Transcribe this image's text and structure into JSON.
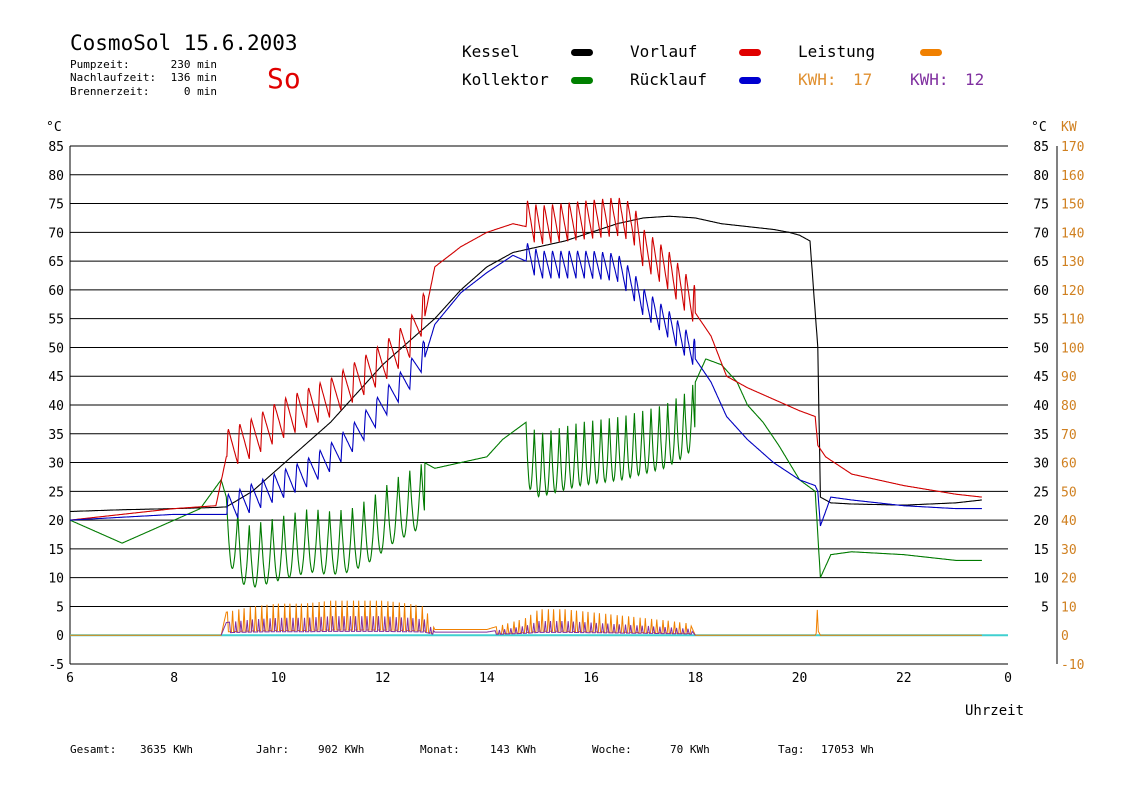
{
  "header": {
    "title": "CosmoSol 15.6.2003",
    "day": "So",
    "info": [
      {
        "label": "Pumpzeit:",
        "value": "230 min"
      },
      {
        "label": "Nachlaufzeit:",
        "value": "136 min"
      },
      {
        "label": "Brennerzeit:",
        "value": "0 min"
      }
    ]
  },
  "legend": [
    {
      "name": "Kessel",
      "color": "#000000"
    },
    {
      "name": "Kollektor",
      "color": "#008000"
    },
    {
      "name": "Vorlauf",
      "color": "#e00000"
    },
    {
      "name": "Rücklauf",
      "color": "#0000d0"
    },
    {
      "name": "Leistung",
      "color": "#f08000"
    }
  ],
  "kwh": [
    {
      "label": "KWH:",
      "value": "17",
      "color": "#e09030"
    },
    {
      "label": "KWH:",
      "value": "12",
      "color": "#8030a0"
    }
  ],
  "axes": {
    "y_left_unit": "°C",
    "y_right_unit": "°C",
    "y_power_unit": "KW",
    "x_label": "Uhrzeit"
  },
  "footer": [
    {
      "label": "Gesamt:",
      "value": "3635 KWh"
    },
    {
      "label": "Jahr:",
      "value": "902 KWh"
    },
    {
      "label": "Monat:",
      "value": "143 KWh"
    },
    {
      "label": "Woche:",
      "value": "70 KWh"
    },
    {
      "label": "Tag:",
      "value": "17053 Wh"
    }
  ],
  "colors": {
    "kessel": "#000000",
    "kollektor": "#007a00",
    "vorlauf": "#d00000",
    "ruecklauf": "#0000c0",
    "leistung": "#f08000",
    "baseline": "#40d0d0",
    "axis_orange": "#d08020",
    "purple": "#8030a0"
  },
  "chart_data": {
    "type": "line",
    "xlim": [
      6,
      24
    ],
    "ylim": [
      -5,
      85
    ],
    "y_power_lim": [
      -10,
      170
    ],
    "x_ticks": [
      "6",
      "8",
      "10",
      "12",
      "14",
      "16",
      "18",
      "20",
      "22",
      "0"
    ],
    "y_ticks_left": [
      "85",
      "80",
      "75",
      "70",
      "65",
      "60",
      "55",
      "50",
      "45",
      "40",
      "35",
      "30",
      "25",
      "20",
      "15",
      "10",
      "5",
      "0",
      "-5"
    ],
    "y_ticks_right": [
      "85",
      "80",
      "75",
      "70",
      "65",
      "60",
      "55",
      "50",
      "45",
      "40",
      "35",
      "30",
      "25",
      "20",
      "15",
      "10",
      "5",
      "",
      ""
    ],
    "y_ticks_power": [
      "170",
      "160",
      "150",
      "140",
      "130",
      "120",
      "110",
      "100",
      "90",
      "80",
      "70",
      "60",
      "50",
      "40",
      "30",
      "20",
      "10",
      "0",
      "-10"
    ],
    "series": [
      {
        "name": "Kessel",
        "key": "kessel",
        "x": [
          6.0,
          7.0,
          8.0,
          8.8,
          9.0,
          9.5,
          10.0,
          10.5,
          11.0,
          11.5,
          12.0,
          12.5,
          13.0,
          13.5,
          14.0,
          14.5,
          15.0,
          15.5,
          16.0,
          16.5,
          17.0,
          17.5,
          18.0,
          18.5,
          19.0,
          19.5,
          19.8,
          20.0,
          20.2,
          20.35,
          20.4,
          20.6,
          21.0,
          22.0,
          23.0,
          23.5
        ],
        "y": [
          21.5,
          21.8,
          22.0,
          22.2,
          22.3,
          25.0,
          29.0,
          33.0,
          37.0,
          42.0,
          47.0,
          51.0,
          55.0,
          60.0,
          64.0,
          66.5,
          67.5,
          68.5,
          70.0,
          71.5,
          72.5,
          72.8,
          72.5,
          71.5,
          71.0,
          70.5,
          70.0,
          69.5,
          68.5,
          50.0,
          24.0,
          23.0,
          22.8,
          22.6,
          23.0,
          23.5
        ]
      },
      {
        "name": "Kollektor",
        "key": "kollektor",
        "x": [
          6.0,
          6.5,
          7.0,
          7.5,
          8.0,
          8.5,
          8.9,
          9.0,
          9.4,
          9.8,
          10.2,
          10.6,
          11.0,
          11.4,
          11.8,
          12.2,
          12.6,
          12.8,
          13.0,
          13.5,
          14.0,
          14.3,
          14.6,
          14.75,
          15.0,
          15.4,
          15.8,
          16.2,
          16.6,
          17.0,
          17.4,
          17.8,
          18.0,
          18.2,
          18.5,
          18.8,
          19.0,
          19.3,
          19.6,
          20.0,
          20.3,
          20.4,
          20.6,
          21.0,
          22.0,
          23.0,
          23.5
        ],
        "y": [
          20.0,
          18.0,
          16.0,
          18.0,
          20.0,
          22.0,
          27.0,
          24.0,
          19.0,
          20.0,
          21.0,
          22.0,
          21.5,
          22.0,
          24.0,
          27.0,
          29.0,
          30.0,
          29.0,
          30.0,
          31.0,
          34.0,
          36.0,
          37.0,
          35.0,
          36.0,
          37.0,
          37.5,
          38.0,
          39.0,
          40.0,
          42.0,
          44.0,
          48.0,
          47.0,
          44.0,
          40.0,
          37.0,
          33.0,
          27.0,
          25.0,
          10.0,
          14.0,
          14.5,
          14.0,
          13.0,
          13.0
        ],
        "osc_amp": 11
      },
      {
        "name": "Vorlauf",
        "key": "vorlauf",
        "x": [
          6.0,
          7.0,
          8.0,
          8.8,
          9.0,
          9.5,
          10.0,
          10.5,
          11.0,
          11.5,
          12.0,
          12.5,
          12.8,
          13.0,
          13.5,
          14.0,
          14.5,
          14.75,
          15.0,
          15.5,
          16.0,
          16.5,
          16.8,
          17.0,
          17.5,
          18.0,
          18.3,
          18.6,
          19.0,
          19.5,
          20.0,
          20.3,
          20.35,
          20.5,
          21.0,
          22.0,
          23.0,
          23.5
        ],
        "y": [
          20.0,
          21.0,
          22.0,
          22.5,
          31.0,
          33.0,
          36.0,
          38.0,
          40.0,
          43.0,
          46.0,
          50.0,
          55.0,
          64.0,
          67.5,
          70.0,
          71.5,
          71.0,
          70.0,
          70.5,
          71.0,
          71.5,
          70.5,
          66.0,
          62.0,
          56.0,
          52.0,
          45.0,
          43.0,
          41.0,
          39.0,
          38.0,
          33.0,
          31.0,
          28.0,
          26.0,
          24.5,
          24.0
        ],
        "osc_amp": 7
      },
      {
        "name": "Rücklauf",
        "key": "ruecklauf",
        "x": [
          6.0,
          7.0,
          8.0,
          8.8,
          9.0,
          9.5,
          10.0,
          10.5,
          11.0,
          11.5,
          12.0,
          12.5,
          12.8,
          13.0,
          13.5,
          14.0,
          14.5,
          14.75,
          15.0,
          15.5,
          16.0,
          16.5,
          16.8,
          17.0,
          17.5,
          18.0,
          18.3,
          18.6,
          19.0,
          19.5,
          20.0,
          20.3,
          20.35,
          20.4,
          20.6,
          21.0,
          22.0,
          23.0,
          23.5
        ],
        "y": [
          20.0,
          20.5,
          21.0,
          21.0,
          21.0,
          23.0,
          25.0,
          27.0,
          30.0,
          34.0,
          39.0,
          44.0,
          48.0,
          54.0,
          59.5,
          63.0,
          66.0,
          65.0,
          63.5,
          63.5,
          63.5,
          63.0,
          60.0,
          57.0,
          53.0,
          48.0,
          44.0,
          38.0,
          34.0,
          30.0,
          27.0,
          26.0,
          25.0,
          19.0,
          24.0,
          23.5,
          22.5,
          22.0,
          22.0
        ],
        "osc_amp": 5
      },
      {
        "name": "Leistung",
        "key": "leistung",
        "x": [
          6.0,
          8.9,
          9.0,
          9.5,
          10.0,
          10.5,
          11.0,
          11.5,
          12.0,
          12.5,
          12.8,
          13.0,
          14.0,
          14.75,
          15.0,
          15.5,
          16.0,
          16.5,
          17.0,
          17.5,
          17.9,
          18.0,
          20.3,
          20.35,
          20.4,
          23.5
        ],
        "y": [
          0,
          0,
          4,
          5,
          5.5,
          5.5,
          6,
          6,
          6,
          5.5,
          5,
          1,
          1,
          3,
          4.5,
          4.5,
          4,
          3.5,
          3,
          2.5,
          2,
          0,
          0,
          5.5,
          0,
          0
        ]
      }
    ]
  }
}
